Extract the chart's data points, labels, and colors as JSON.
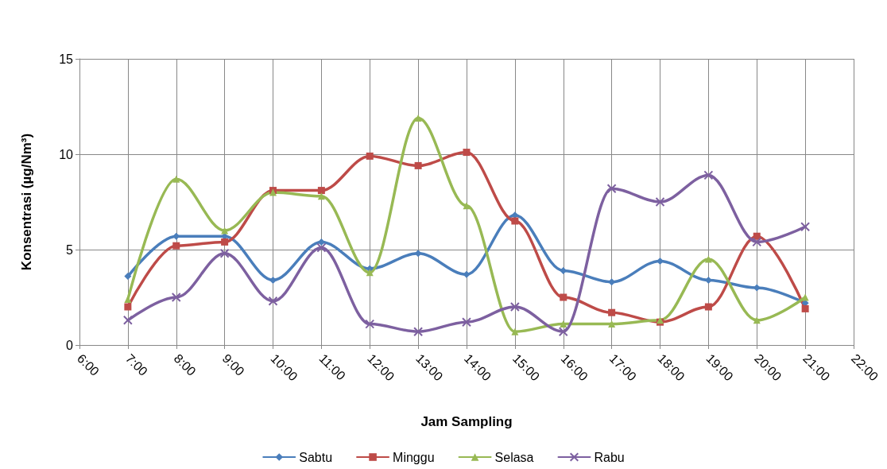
{
  "chart_data": {
    "type": "line",
    "xlabel": "Jam Sampling",
    "ylabel": "Konsentrasi (µg/Nm³)",
    "x": [
      7,
      8,
      9,
      10,
      11,
      12,
      13,
      14,
      15,
      16,
      17,
      18,
      19,
      20,
      21
    ],
    "xlim": [
      6,
      22
    ],
    "xticks": [
      {
        "value": 6,
        "label": "6:00"
      },
      {
        "value": 7,
        "label": "7:00"
      },
      {
        "value": 8,
        "label": "8:00"
      },
      {
        "value": 9,
        "label": "9:00"
      },
      {
        "value": 10,
        "label": "10:00"
      },
      {
        "value": 11,
        "label": "11:00"
      },
      {
        "value": 12,
        "label": "12:00"
      },
      {
        "value": 13,
        "label": "13:00"
      },
      {
        "value": 14,
        "label": "14:00"
      },
      {
        "value": 15,
        "label": "15:00"
      },
      {
        "value": 16,
        "label": "16:00"
      },
      {
        "value": 17,
        "label": "17:00"
      },
      {
        "value": 18,
        "label": "18:00"
      },
      {
        "value": 19,
        "label": "19:00"
      },
      {
        "value": 20,
        "label": "20:00"
      },
      {
        "value": 21,
        "label": "21:00"
      },
      {
        "value": 22,
        "label": "22:00"
      }
    ],
    "ylim": [
      0,
      15
    ],
    "yticks": [
      0,
      5,
      10,
      15
    ],
    "grid": true,
    "legend": "bottom",
    "line_style": "solid",
    "series": [
      {
        "name": "Sabtu",
        "color": "#4a7ebb",
        "marker": "diamond",
        "values": [
          3.6,
          5.7,
          5.7,
          3.4,
          5.4,
          4.0,
          4.8,
          3.7,
          6.8,
          3.9,
          3.3,
          4.4,
          3.4,
          3.0,
          2.2
        ]
      },
      {
        "name": "Minggu",
        "color": "#be4b48",
        "marker": "square",
        "values": [
          2.0,
          5.2,
          5.4,
          8.1,
          8.1,
          9.9,
          9.4,
          10.1,
          6.5,
          2.5,
          1.7,
          1.2,
          2.0,
          5.7,
          1.9
        ]
      },
      {
        "name": "Selasa",
        "color": "#98b954",
        "marker": "triangle",
        "values": [
          2.4,
          8.7,
          6.0,
          8.0,
          7.8,
          3.8,
          11.9,
          7.3,
          0.7,
          1.1,
          1.1,
          1.3,
          4.5,
          1.3,
          2.5
        ]
      },
      {
        "name": "Rabu",
        "color": "#7d60a0",
        "marker": "cross",
        "values": [
          1.3,
          2.5,
          4.8,
          2.3,
          5.1,
          1.1,
          0.7,
          1.2,
          2.0,
          0.7,
          8.2,
          7.5,
          8.9,
          5.4,
          6.2
        ]
      }
    ]
  }
}
